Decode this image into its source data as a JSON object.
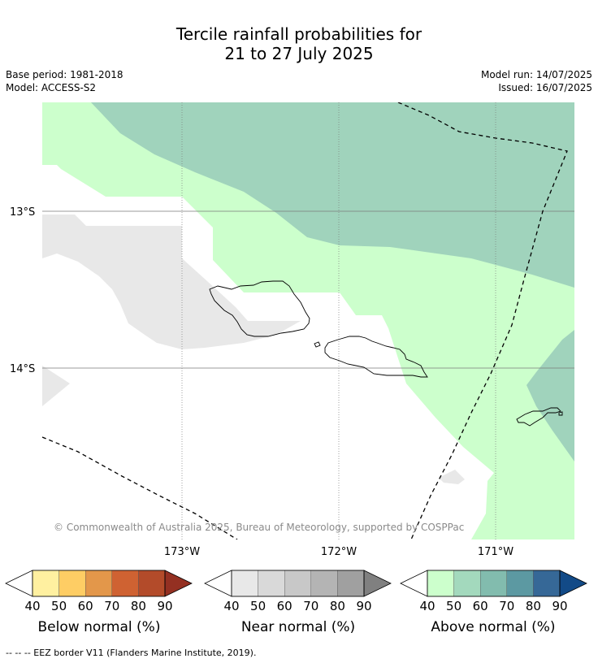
{
  "title_line1": "Tercile rainfall probabilities for",
  "title_line2": "21 to 27 July 2025",
  "base_period": "Base period: 1981-2018",
  "model": "Model: ACCESS-S2",
  "model_run": "Model run: 14/07/2025",
  "issued": "Issued: 16/07/2025",
  "copyright": "© Commonwealth of Australia 2025, Bureau of Meteorology, supported by COSPPac",
  "lat_labels": [
    "13°S",
    "14°S"
  ],
  "lon_labels": [
    "173°W",
    "172°W",
    "171°W"
  ],
  "colorbars": [
    {
      "label": "Below normal (%)",
      "ticks": [
        "40",
        "50",
        "60",
        "70",
        "80",
        "90"
      ],
      "colors": [
        "#fff0a0",
        "#fecd64",
        "#e3974a",
        "#cf6232",
        "#b34b2a",
        "#943022"
      ]
    },
    {
      "label": "Near normal (%)",
      "ticks": [
        "40",
        "50",
        "60",
        "70",
        "80",
        "90"
      ],
      "colors": [
        "#e8e8e8",
        "#d9d9d9",
        "#c8c8c8",
        "#b4b4b4",
        "#a0a0a0",
        "#808080"
      ]
    },
    {
      "label": "Above normal (%)",
      "ticks": [
        "40",
        "50",
        "60",
        "70",
        "80",
        "90"
      ],
      "colors": [
        "#ccffcc",
        "#a3d9bd",
        "#82bcae",
        "#5c99a2",
        "#366897",
        "#124a87"
      ]
    }
  ],
  "footnote": "--  --  -- EEZ border V11 (Flanders Marine Institute, 2019)."
}
